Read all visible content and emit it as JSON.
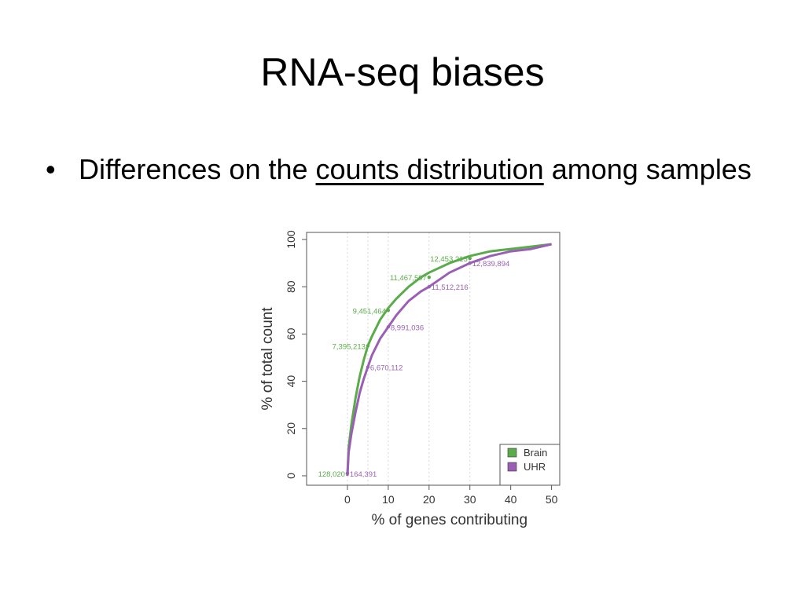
{
  "slide": {
    "title": "RNA-seq biases",
    "bullet": {
      "pre": "Differences on the ",
      "emph": "counts distribution",
      "post": " among samples"
    }
  },
  "chart_data": {
    "type": "line",
    "xlabel": "% of genes contributing",
    "ylabel": "% of total count",
    "xlim": [
      -10,
      52
    ],
    "ylim": [
      -4,
      103
    ],
    "xticks": [
      0,
      10,
      20,
      30,
      40,
      50
    ],
    "yticks": [
      0,
      20,
      40,
      60,
      80,
      100
    ],
    "grid_x": [
      0,
      5,
      10,
      20,
      30
    ],
    "legend_position": "bottom-right",
    "series": [
      {
        "name": "Brain",
        "color": "#5aab4a",
        "x": [
          0,
          0.3,
          1,
          2,
          3,
          4,
          5,
          6,
          8,
          10,
          12,
          15,
          18,
          20,
          25,
          30,
          35,
          40,
          45,
          50
        ],
        "y": [
          0,
          12,
          22,
          33,
          42,
          49,
          55,
          59,
          66,
          71,
          75,
          80,
          84,
          86,
          90,
          93,
          95,
          96,
          97,
          98
        ],
        "annotations": [
          {
            "x": 0,
            "y": 1,
            "label": "128,020"
          },
          {
            "x": 5,
            "y": 55,
            "label": "7,395,213"
          },
          {
            "x": 10,
            "y": 70,
            "label": "9,451,464"
          },
          {
            "x": 20,
            "y": 84,
            "label": "11,467,597"
          },
          {
            "x": 30,
            "y": 92,
            "label": "12,453,215"
          }
        ]
      },
      {
        "name": "UHR",
        "color": "#9a5fb5",
        "x": [
          0,
          0.3,
          1,
          2,
          3,
          4,
          5,
          6,
          8,
          10,
          12,
          15,
          18,
          20,
          25,
          30,
          35,
          40,
          45,
          50
        ],
        "y": [
          0,
          10,
          18,
          27,
          35,
          41,
          46,
          51,
          58,
          63,
          68,
          74,
          78,
          80,
          86,
          90,
          93,
          95,
          96,
          98
        ],
        "annotations": [
          {
            "x": 0,
            "y": 1,
            "label": "164,391"
          },
          {
            "x": 5,
            "y": 46,
            "label": "6,670,112"
          },
          {
            "x": 10,
            "y": 63,
            "label": "8,991,036"
          },
          {
            "x": 20,
            "y": 80,
            "label": "11,512,216"
          },
          {
            "x": 30,
            "y": 90,
            "label": "12,839,894"
          }
        ]
      }
    ]
  }
}
